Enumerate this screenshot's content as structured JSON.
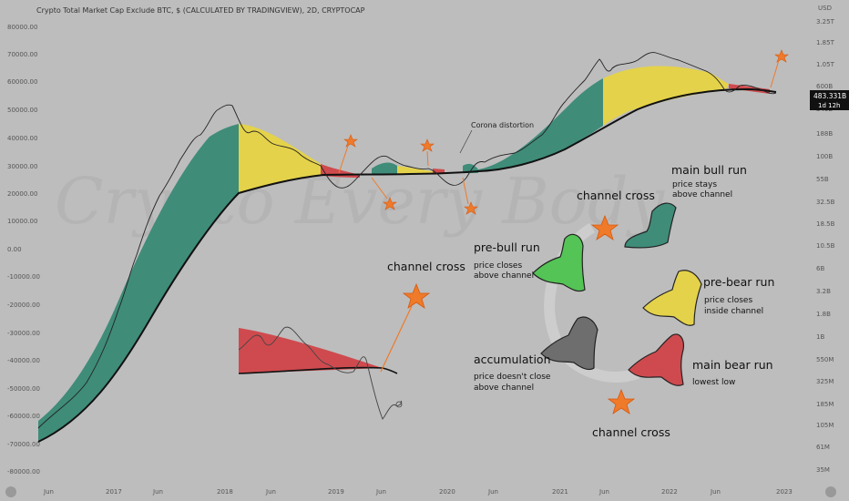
{
  "header": {
    "title": "Crypto Total Market Cap Exclude BTC, $ (CALCULATED BY TRADINGVIEW), 2D, CRYPTOCAP",
    "currency": "USD"
  },
  "price_badge": {
    "value": "483.331B",
    "timer": "1d 12h"
  },
  "watermark": "Crypto Every Body",
  "colors": {
    "bull_channel": "#3f8c79",
    "bear_top": "#e4d24a",
    "bear_channel": "#cf4a4e",
    "pre_bull": "#53c455",
    "accumulation": "#6e6e6e",
    "star": "#ef7a2a",
    "background": "#bdbdbd"
  },
  "chart_data": {
    "type": "line",
    "title": "Crypto Total Market Cap Exclude BTC, $ (CALCULATED BY TRADINGVIEW), 2D, CRYPTOCAP",
    "x_tick_labels": [
      "Jun",
      "2017",
      "Jun",
      "2018",
      "Jun",
      "2019",
      "Jun",
      "2020",
      "Jun",
      "2021",
      "Jun",
      "2022",
      "Jun",
      "2023"
    ],
    "left_axis_ticks": [
      "80000.00",
      "70000.00",
      "60000.00",
      "50000.00",
      "40000.00",
      "30000.00",
      "20000.00",
      "10000.00",
      "0.00",
      "-10000.00",
      "-20000.00",
      "-30000.00",
      "-40000.00",
      "-50000.00",
      "-60000.00",
      "-70000.00",
      "-80000.00"
    ],
    "right_axis_ticks": [
      "3.25T",
      "1.85T",
      "1.05T",
      "600B",
      "340B",
      "188B",
      "100B",
      "55B",
      "32.5B",
      "18.5B",
      "10.5B",
      "6B",
      "3.2B",
      "1.8B",
      "1B",
      "550M",
      "325M",
      "185M",
      "105M",
      "61M",
      "35M"
    ],
    "log_scale_right": true,
    "grid": false,
    "series": [
      {
        "name": "",
        "values": [
          0.3,
          1,
          5,
          22,
          60,
          110,
          200,
          480,
          380,
          240,
          160,
          110,
          90,
          80,
          70,
          80,
          60,
          50,
          65,
          120,
          300,
          500,
          1100,
          1900,
          2400,
          2200,
          1800,
          1400,
          1200,
          800,
          500,
          400,
          450,
          550,
          600
        ]
      },
      {
        "name": "",
        "values": [
          0.05,
          0.2,
          1,
          4,
          15,
          35,
          70,
          130,
          180,
          190,
          185,
          175,
          160,
          150,
          140,
          130,
          125,
          120,
          118,
          125,
          140,
          170,
          230,
          330,
          480,
          620,
          700,
          720,
          700,
          650,
          580,
          520,
          500,
          480,
          480
        ]
      }
    ]
  },
  "annotations": {
    "corona": "Corona distortion",
    "channel_cross_top": "channel cross",
    "channel_cross_left": "channel cross",
    "channel_cross_bottom": "channel cross"
  },
  "stages": {
    "main_bull": {
      "title": "main bull run",
      "desc": [
        "price stays",
        "above channel"
      ]
    },
    "pre_bull": {
      "title": "pre-bull run",
      "desc": [
        "price closes",
        "above channel"
      ]
    },
    "pre_bear": {
      "title": "pre-bear run",
      "desc": [
        "price closes",
        "inside channel"
      ]
    },
    "accumulation": {
      "title": "accumulation",
      "desc": [
        "price doesn't close",
        "above channel"
      ]
    },
    "main_bear": {
      "title": "main bear run",
      "desc": [
        "lowest low"
      ]
    }
  }
}
